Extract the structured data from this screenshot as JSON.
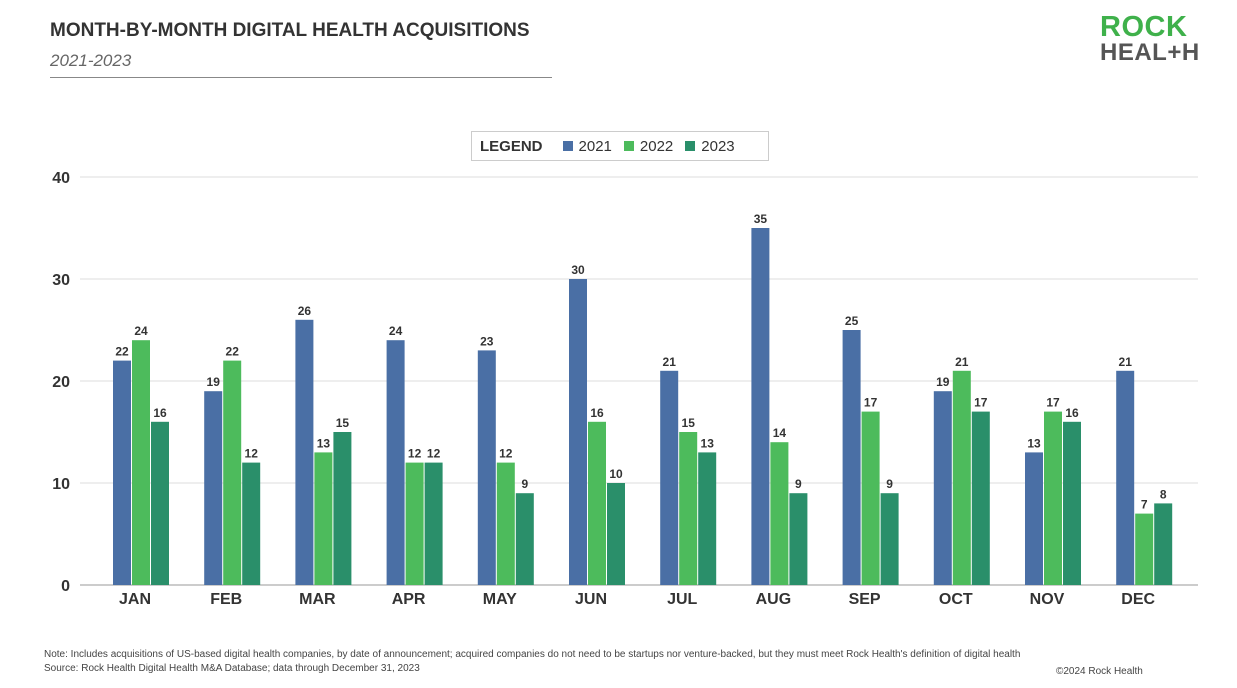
{
  "title": "MONTH-BY-MONTH DIGITAL HEALTH ACQUISITIONS",
  "subtitle": "2021-2023",
  "logo": {
    "line1": "ROCK",
    "line2": "HEAL+H"
  },
  "legend": {
    "title": "LEGEND"
  },
  "notes": {
    "note": "Note: Includes acquisitions of US-based digital health companies, by date of announcement; acquired companies do not need to be startups nor venture-backed, but they must meet Rock Health's definition of digital health",
    "source": "Source: Rock Health Digital Health M&A Database; data through December 31, 2023",
    "copyright": "©2024 Rock Health"
  },
  "chart_data": {
    "type": "bar",
    "title": "MONTH-BY-MONTH DIGITAL HEALTH ACQUISITIONS",
    "categories": [
      "JAN",
      "FEB",
      "MAR",
      "APR",
      "MAY",
      "JUN",
      "JUL",
      "AUG",
      "SEP",
      "OCT",
      "NOV",
      "DEC"
    ],
    "series": [
      {
        "name": "2021",
        "color": "#4a6fa5",
        "values": [
          22,
          19,
          26,
          24,
          23,
          30,
          21,
          35,
          25,
          19,
          13,
          21
        ]
      },
      {
        "name": "2022",
        "color": "#4dbb5c",
        "values": [
          24,
          22,
          13,
          12,
          12,
          16,
          15,
          14,
          17,
          21,
          17,
          7
        ]
      },
      {
        "name": "2023",
        "color": "#2a8f6a",
        "values": [
          16,
          12,
          15,
          12,
          9,
          10,
          13,
          9,
          9,
          17,
          16,
          8
        ]
      }
    ],
    "ylim": [
      0,
      40
    ],
    "yticks": [
      0,
      10,
      20,
      30,
      40
    ],
    "grid": true,
    "legend_position": "top-center"
  }
}
